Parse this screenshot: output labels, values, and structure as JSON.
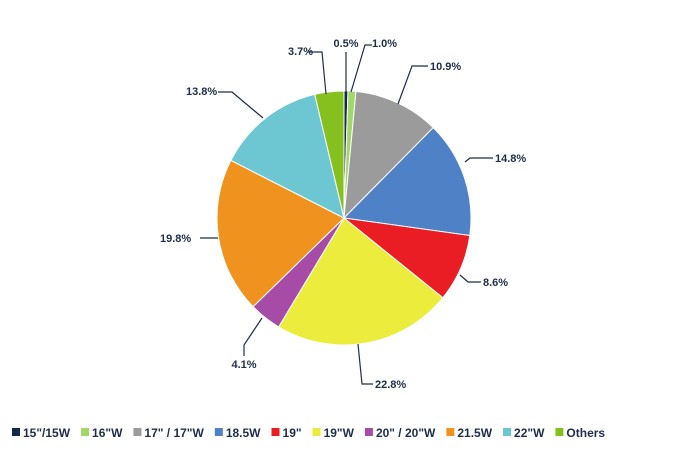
{
  "chart_data": {
    "type": "pie",
    "title": "",
    "start_angle_deg": 0,
    "direction": "clockwise",
    "legend_position": "bottom",
    "slices": [
      {
        "label": "15\"/15W",
        "value": 0.5,
        "value_label": "0.5%",
        "color": "#13294b"
      },
      {
        "label": "16\"W",
        "value": 1.0,
        "value_label": "1.0%",
        "color": "#a2d86a"
      },
      {
        "label": "17\" / 17\"W",
        "value": 10.9,
        "value_label": "10.9%",
        "color": "#9b9b9b"
      },
      {
        "label": "18.5W",
        "value": 14.8,
        "value_label": "14.8%",
        "color": "#4f81c7"
      },
      {
        "label": "19\"",
        "value": 8.6,
        "value_label": "8.6%",
        "color": "#ea1c24"
      },
      {
        "label": "19\"W",
        "value": 22.8,
        "value_label": "22.8%",
        "color": "#ecec3c"
      },
      {
        "label": "20\" / 20\"W",
        "value": 4.1,
        "value_label": "4.1%",
        "color": "#a64ca6"
      },
      {
        "label": "21.5W",
        "value": 19.8,
        "value_label": "19.8%",
        "color": "#f0931e"
      },
      {
        "label": "22\"W",
        "value": 13.8,
        "value_label": "13.8%",
        "color": "#6cc7d3"
      },
      {
        "label": "Others",
        "value": 3.7,
        "value_label": "3.7%",
        "color": "#86c01f"
      }
    ]
  }
}
